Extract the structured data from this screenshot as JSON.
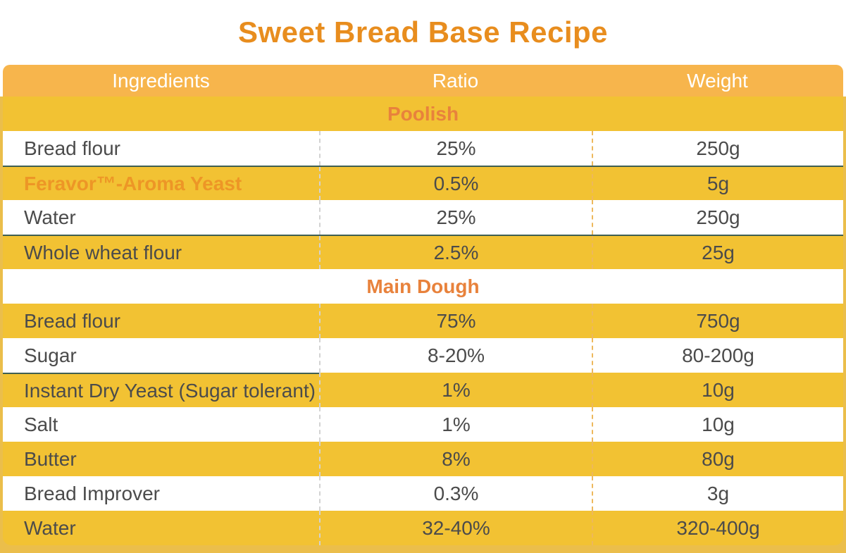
{
  "title": "Sweet Bread Base Recipe",
  "columns": [
    "Ingredients",
    "Ratio",
    "Weight"
  ],
  "table": {
    "rows": [
      {
        "type": "section",
        "label": "Poolish"
      },
      {
        "type": "item",
        "ingredient": "Bread flour",
        "ratio": "25%",
        "weight": "250g"
      },
      {
        "type": "item",
        "ingredient": "Feravor™-Aroma Yeast",
        "ratio": "0.5%",
        "weight": "5g",
        "highlight": true,
        "divider": "full"
      },
      {
        "type": "item",
        "ingredient": "Water",
        "ratio": "25%",
        "weight": "250g"
      },
      {
        "type": "item",
        "ingredient": "Whole wheat flour",
        "ratio": "2.5%",
        "weight": "25g",
        "divider": "full"
      },
      {
        "type": "section",
        "label": "Main Dough"
      },
      {
        "type": "item",
        "ingredient": "Bread flour",
        "ratio": "75%",
        "weight": "750g"
      },
      {
        "type": "item",
        "ingredient": "Sugar",
        "ratio": "8-20%",
        "weight": "80-200g"
      },
      {
        "type": "item",
        "ingredient": "Instant Dry Yeast (Sugar tolerant)",
        "ratio": "1%",
        "weight": "10g",
        "divider": "first"
      },
      {
        "type": "item",
        "ingredient": "Salt",
        "ratio": "1%",
        "weight": "10g"
      },
      {
        "type": "item",
        "ingredient": "Butter",
        "ratio": "8%",
        "weight": "80g"
      },
      {
        "type": "item",
        "ingredient": "Bread Improver",
        "ratio": "0.3%",
        "weight": "3g"
      },
      {
        "type": "item",
        "ingredient": "Water",
        "ratio": "32-40%",
        "weight": "320-400g"
      }
    ]
  },
  "colors": {
    "title_orange": "#E88D1E",
    "section_orange": "#E8823C",
    "brand_orange": "#ED9626",
    "header_amber": "#F7B54C",
    "row_yellow": "#F2C233",
    "frame_yellow": "#EBBE4B",
    "text_dark": "#4B4B4B",
    "divider_green": "#3F5F52",
    "header_text": "#FFFFFF",
    "dash_gray": "#D2D2D2",
    "dash_orange": "#EDB85C"
  }
}
